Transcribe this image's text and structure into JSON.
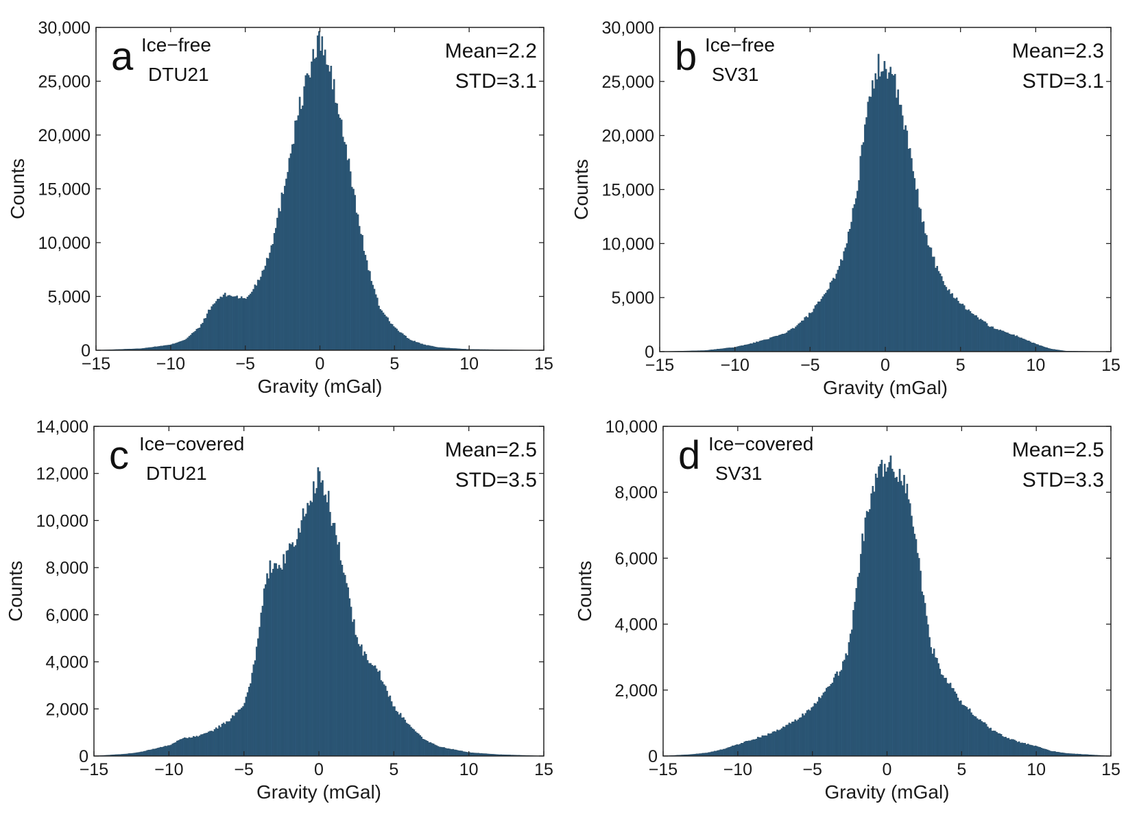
{
  "figure": {
    "bar_color": "#2d5a7b",
    "bar_edge_color": "#1e3f57",
    "axis_color": "#222222"
  },
  "chart_data": [
    {
      "type": "bar",
      "panel": "a",
      "annotation": [
        "Ice−free",
        "DTU21"
      ],
      "stats": [
        "Mean=2.2",
        "STD=3.1"
      ],
      "xlabel": "Gravity (mGal)",
      "ylabel": "Counts",
      "xlim": [
        -15,
        15
      ],
      "ylim": [
        0,
        30000
      ],
      "xticks": [
        -15,
        -10,
        -5,
        0,
        5,
        10,
        15
      ],
      "xtick_labels": [
        "−15",
        "−10",
        "−5",
        "0",
        "5",
        "10",
        "15"
      ],
      "yticks": [
        0,
        5000,
        10000,
        15000,
        20000,
        25000,
        30000
      ],
      "ytick_labels": [
        "0",
        "5,000",
        "10,000",
        "15,000",
        "20,000",
        "25,000",
        "30,000"
      ],
      "bin_width": 0.1,
      "profile": [
        [
          -15,
          0
        ],
        [
          -12,
          150
        ],
        [
          -10,
          500
        ],
        [
          -9,
          1000
        ],
        [
          -8,
          2200
        ],
        [
          -7.5,
          3500
        ],
        [
          -7,
          4500
        ],
        [
          -6.5,
          5100
        ],
        [
          -6,
          5100
        ],
        [
          -5.5,
          5000
        ],
        [
          -5,
          4700
        ],
        [
          -4.5,
          5600
        ],
        [
          -4,
          6800
        ],
        [
          -3.5,
          8600
        ],
        [
          -3,
          11000
        ],
        [
          -2.5,
          14500
        ],
        [
          -2,
          18200
        ],
        [
          -1.5,
          21800
        ],
        [
          -1,
          24500
        ],
        [
          -0.5,
          26800
        ],
        [
          0,
          29000
        ],
        [
          0.5,
          26800
        ],
        [
          1,
          24000
        ],
        [
          1.5,
          20500
        ],
        [
          2,
          16800
        ],
        [
          2.5,
          12800
        ],
        [
          3,
          9200
        ],
        [
          3.5,
          6200
        ],
        [
          4,
          4000
        ],
        [
          5,
          2100
        ],
        [
          6,
          1000
        ],
        [
          7,
          500
        ],
        [
          8,
          250
        ],
        [
          10,
          80
        ],
        [
          15,
          0
        ]
      ]
    },
    {
      "type": "bar",
      "panel": "b",
      "annotation": [
        "Ice−free",
        "SV31"
      ],
      "stats": [
        "Mean=2.3",
        "STD=3.1"
      ],
      "xlabel": "Gravity (mGal)",
      "ylabel": "Counts",
      "xlim": [
        -15,
        15
      ],
      "ylim": [
        0,
        30000
      ],
      "xticks": [
        -15,
        -10,
        -5,
        0,
        5,
        10,
        15
      ],
      "xtick_labels": [
        "−15",
        "−10",
        "−5",
        "0",
        "5",
        "10",
        "15"
      ],
      "yticks": [
        0,
        5000,
        10000,
        15000,
        20000,
        25000,
        30000
      ],
      "ytick_labels": [
        "0",
        "5,000",
        "10,000",
        "15,000",
        "20,000",
        "25,000",
        "30,000"
      ],
      "bin_width": 0.1,
      "profile": [
        [
          -15,
          0
        ],
        [
          -12,
          100
        ],
        [
          -10,
          400
        ],
        [
          -9,
          700
        ],
        [
          -8,
          1100
        ],
        [
          -7,
          1500
        ],
        [
          -6,
          2200
        ],
        [
          -5,
          3500
        ],
        [
          -4,
          5200
        ],
        [
          -3,
          8000
        ],
        [
          -2.5,
          10500
        ],
        [
          -2,
          14000
        ],
        [
          -1.5,
          19000
        ],
        [
          -1,
          23500
        ],
        [
          -0.5,
          26500
        ],
        [
          0,
          26500
        ],
        [
          0.5,
          25500
        ],
        [
          1,
          22500
        ],
        [
          1.5,
          19500
        ],
        [
          2,
          15500
        ],
        [
          2.5,
          12000
        ],
        [
          3,
          9500
        ],
        [
          3.5,
          7500
        ],
        [
          4,
          6000
        ],
        [
          5,
          4500
        ],
        [
          6,
          3300
        ],
        [
          7,
          2300
        ],
        [
          8,
          1800
        ],
        [
          9,
          1300
        ],
        [
          10,
          700
        ],
        [
          11,
          250
        ],
        [
          12,
          50
        ],
        [
          15,
          0
        ]
      ]
    },
    {
      "type": "bar",
      "panel": "c",
      "annotation": [
        "Ice−covered",
        "DTU21"
      ],
      "stats": [
        "Mean=2.5",
        "STD=3.5"
      ],
      "xlabel": "Gravity (mGal)",
      "ylabel": "Counts",
      "xlim": [
        -15,
        15
      ],
      "ylim": [
        0,
        14000
      ],
      "xticks": [
        -15,
        -10,
        -5,
        0,
        5,
        10,
        15
      ],
      "xtick_labels": [
        "−15",
        "−10",
        "−5",
        "0",
        "5",
        "10",
        "15"
      ],
      "yticks": [
        0,
        2000,
        4000,
        6000,
        8000,
        10000,
        12000,
        14000
      ],
      "ytick_labels": [
        "0",
        "2,000",
        "4,000",
        "6,000",
        "8,000",
        "10,000",
        "12,000",
        "14,000"
      ],
      "bin_width": 0.1,
      "profile": [
        [
          -15,
          0
        ],
        [
          -13,
          80
        ],
        [
          -12,
          150
        ],
        [
          -11,
          300
        ],
        [
          -10,
          450
        ],
        [
          -9,
          750
        ],
        [
          -8,
          850
        ],
        [
          -7,
          1100
        ],
        [
          -6,
          1500
        ],
        [
          -5,
          2100
        ],
        [
          -4.5,
          3200
        ],
        [
          -4,
          5200
        ],
        [
          -3.5,
          7500
        ],
        [
          -3,
          8400
        ],
        [
          -2.5,
          8200
        ],
        [
          -2,
          8600
        ],
        [
          -1.5,
          9300
        ],
        [
          -1,
          10200
        ],
        [
          -0.5,
          11200
        ],
        [
          0,
          11800
        ],
        [
          0.5,
          11200
        ],
        [
          1,
          9800
        ],
        [
          1.5,
          8300
        ],
        [
          2,
          6700
        ],
        [
          2.5,
          5200
        ],
        [
          3,
          4300
        ],
        [
          3.5,
          4000
        ],
        [
          4,
          3600
        ],
        [
          4.5,
          2800
        ],
        [
          5,
          2100
        ],
        [
          6,
          1300
        ],
        [
          7,
          700
        ],
        [
          8,
          400
        ],
        [
          10,
          150
        ],
        [
          12,
          60
        ],
        [
          15,
          0
        ]
      ]
    },
    {
      "type": "bar",
      "panel": "d",
      "annotation": [
        "Ice−covered",
        "SV31"
      ],
      "stats": [
        "Mean=2.5",
        "STD=3.3"
      ],
      "xlabel": "Gravity (mGal)",
      "ylabel": "Counts",
      "xlim": [
        -15,
        15
      ],
      "ylim": [
        0,
        10000
      ],
      "xticks": [
        -15,
        -10,
        -5,
        0,
        5,
        10,
        15
      ],
      "xtick_labels": [
        "−15",
        "−10",
        "−5",
        "0",
        "5",
        "10",
        "15"
      ],
      "yticks": [
        0,
        2000,
        4000,
        6000,
        8000,
        10000
      ],
      "ytick_labels": [
        "0",
        "2,000",
        "4,000",
        "6,000",
        "8,000",
        "10,000"
      ],
      "bin_width": 0.1,
      "profile": [
        [
          -15,
          0
        ],
        [
          -13,
          50
        ],
        [
          -12,
          100
        ],
        [
          -11,
          200
        ],
        [
          -10,
          350
        ],
        [
          -9,
          500
        ],
        [
          -8,
          650
        ],
        [
          -7,
          850
        ],
        [
          -6,
          1100
        ],
        [
          -5,
          1500
        ],
        [
          -4,
          2000
        ],
        [
          -3,
          2700
        ],
        [
          -2.5,
          3400
        ],
        [
          -2,
          5200
        ],
        [
          -1.5,
          7000
        ],
        [
          -1,
          8000
        ],
        [
          -0.5,
          8600
        ],
        [
          0,
          8800
        ],
        [
          0.5,
          8700
        ],
        [
          1,
          8500
        ],
        [
          1.5,
          7800
        ],
        [
          2,
          6400
        ],
        [
          2.5,
          4600
        ],
        [
          3,
          3300
        ],
        [
          3.5,
          2700
        ],
        [
          4,
          2300
        ],
        [
          5,
          1600
        ],
        [
          6,
          1200
        ],
        [
          7,
          800
        ],
        [
          8,
          550
        ],
        [
          9,
          400
        ],
        [
          10,
          300
        ],
        [
          11,
          150
        ],
        [
          12,
          80
        ],
        [
          15,
          0
        ]
      ]
    }
  ]
}
